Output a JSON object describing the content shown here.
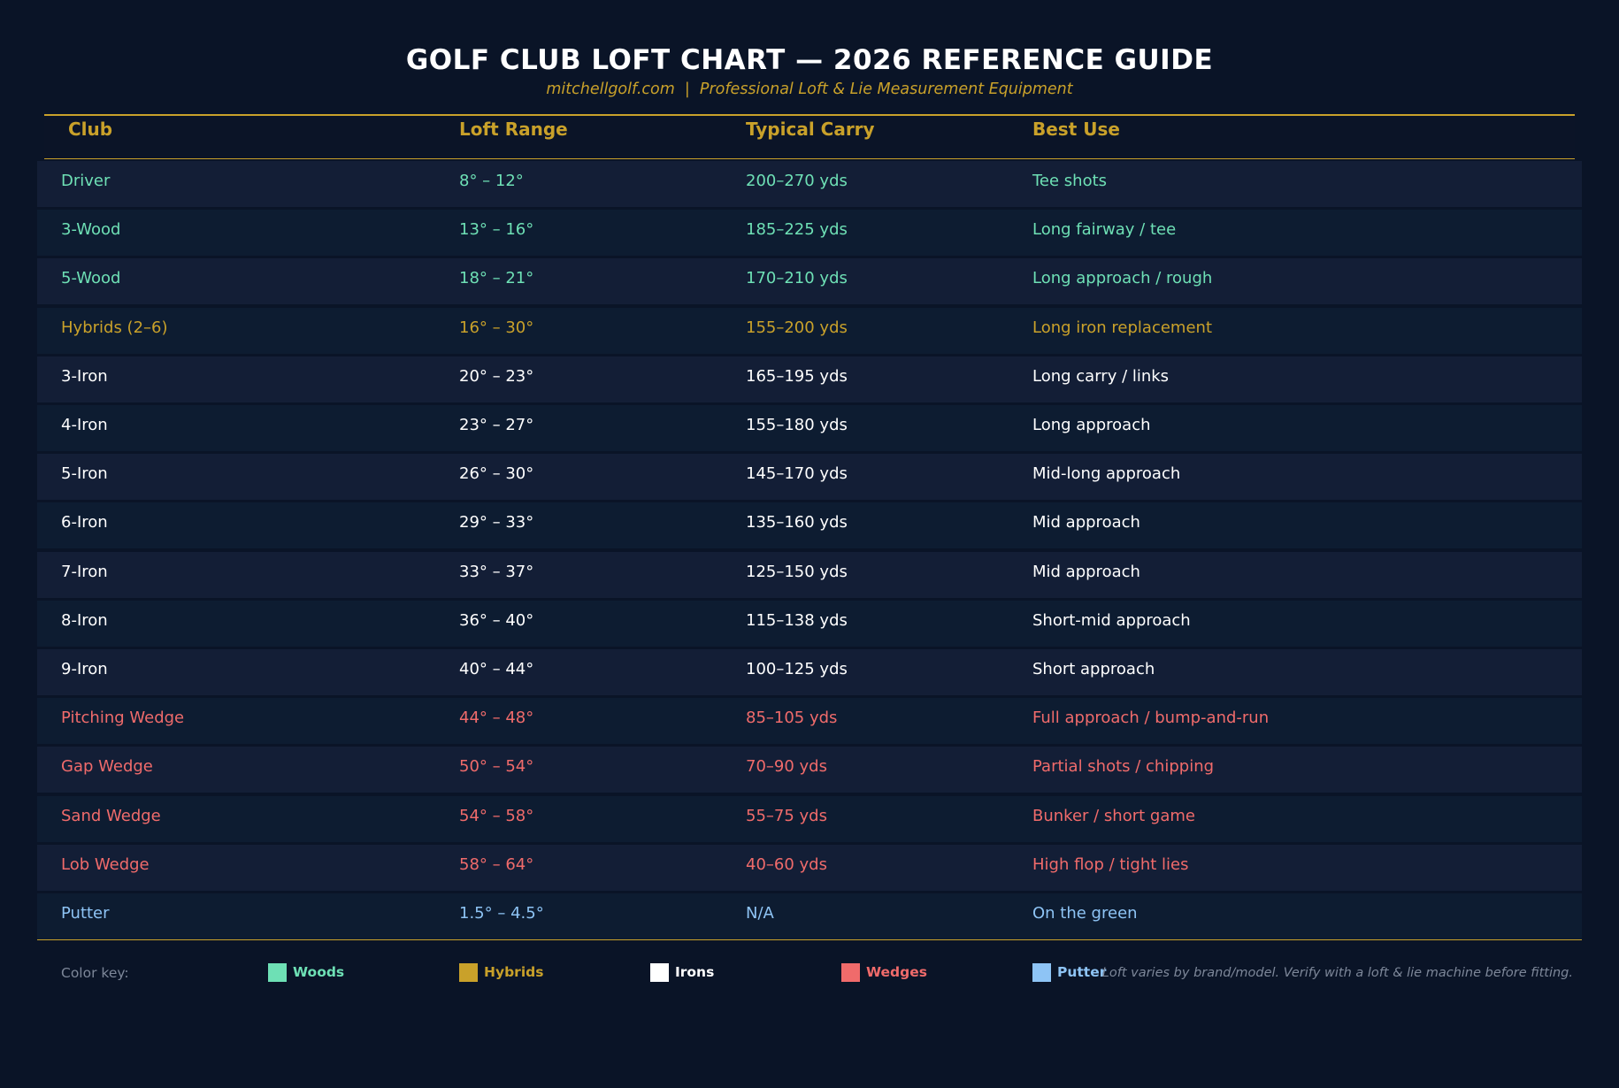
{
  "title": "GOLF CLUB LOFT CHART — 2026 REFERENCE GUIDE",
  "subtitle": "mitchellgolf.com  |  Professional Loft & Lie Measurement Equipment",
  "colors": {
    "background": "#0a1427",
    "accent": "#c9a12a",
    "woods": "#6ee0b5",
    "hybrids": "#c9a12a",
    "irons": "#ffffff",
    "wedges": "#f06b6b",
    "putter": "#8ec4f5"
  },
  "table": {
    "headers": [
      "Club",
      "Loft Range",
      "Typical Carry",
      "Best Use"
    ],
    "rows": [
      {
        "category": "woods",
        "club": "Driver",
        "loft": "8° – 12°",
        "carry": "200–270 yds",
        "use": "Tee shots"
      },
      {
        "category": "woods",
        "club": "3-Wood",
        "loft": "13° – 16°",
        "carry": "185–225 yds",
        "use": "Long fairway / tee"
      },
      {
        "category": "woods",
        "club": "5-Wood",
        "loft": "18° – 21°",
        "carry": "170–210 yds",
        "use": "Long approach / rough"
      },
      {
        "category": "hybrids",
        "club": "Hybrids (2–6)",
        "loft": "16° – 30°",
        "carry": "155–200 yds",
        "use": "Long iron replacement"
      },
      {
        "category": "irons",
        "club": "3-Iron",
        "loft": "20° – 23°",
        "carry": "165–195 yds",
        "use": "Long carry / links"
      },
      {
        "category": "irons",
        "club": "4-Iron",
        "loft": "23° – 27°",
        "carry": "155–180 yds",
        "use": "Long approach"
      },
      {
        "category": "irons",
        "club": "5-Iron",
        "loft": "26° – 30°",
        "carry": "145–170 yds",
        "use": "Mid-long approach"
      },
      {
        "category": "irons",
        "club": "6-Iron",
        "loft": "29° – 33°",
        "carry": "135–160 yds",
        "use": "Mid approach"
      },
      {
        "category": "irons",
        "club": "7-Iron",
        "loft": "33° – 37°",
        "carry": "125–150 yds",
        "use": "Mid approach"
      },
      {
        "category": "irons",
        "club": "8-Iron",
        "loft": "36° – 40°",
        "carry": "115–138 yds",
        "use": "Short-mid approach"
      },
      {
        "category": "irons",
        "club": "9-Iron",
        "loft": "40° – 44°",
        "carry": "100–125 yds",
        "use": "Short approach"
      },
      {
        "category": "wedges",
        "club": "Pitching Wedge",
        "loft": "44° – 48°",
        "carry": "85–105 yds",
        "use": "Full approach / bump-and-run"
      },
      {
        "category": "wedges",
        "club": "Gap Wedge",
        "loft": "50° – 54°",
        "carry": "70–90 yds",
        "use": "Partial shots / chipping"
      },
      {
        "category": "wedges",
        "club": "Sand Wedge",
        "loft": "54° – 58°",
        "carry": "55–75 yds",
        "use": "Bunker / short game"
      },
      {
        "category": "wedges",
        "club": "Lob Wedge",
        "loft": "58° – 64°",
        "carry": "40–60 yds",
        "use": "High flop / tight lies"
      },
      {
        "category": "putter",
        "club": "Putter",
        "loft": "1.5° – 4.5°",
        "carry": "N/A",
        "use": "On the green"
      }
    ]
  },
  "color_key": {
    "label": "Color key:",
    "items": [
      {
        "label": "Woods",
        "color": "#6ee0b5"
      },
      {
        "label": "Hybrids",
        "color": "#c9a12a"
      },
      {
        "label": "Irons",
        "color": "#ffffff"
      },
      {
        "label": "Wedges",
        "color": "#f06b6b"
      },
      {
        "label": "Putter",
        "color": "#8ec4f5"
      }
    ]
  },
  "footnote": "Loft varies by brand/model. Verify with a loft & lie machine before fitting."
}
